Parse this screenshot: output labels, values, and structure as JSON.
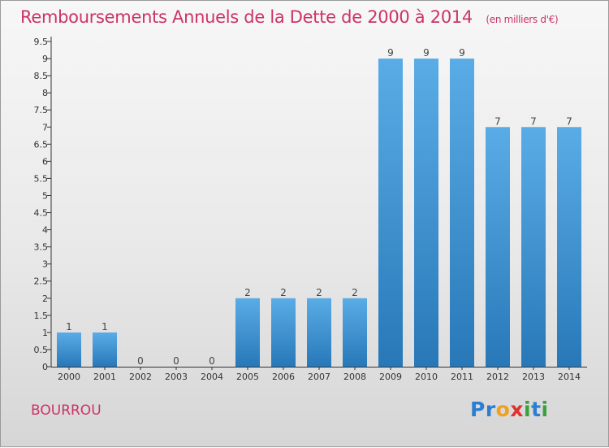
{
  "header": {
    "title": "Remboursements Annuels de la Dette de 2000 à 2014",
    "unit": "(en milliers d'€)"
  },
  "footer": {
    "place": "BOURROU",
    "logo_letters": [
      {
        "ch": "P",
        "color": "#2a7fd4"
      },
      {
        "ch": "r",
        "color": "#2a7fd4"
      },
      {
        "ch": "o",
        "color": "#f0a020"
      },
      {
        "ch": "x",
        "color": "#e03030"
      },
      {
        "ch": "i",
        "color": "#3aa03a"
      },
      {
        "ch": "t",
        "color": "#2a7fd4"
      },
      {
        "ch": "i",
        "color": "#3aa03a"
      }
    ]
  },
  "chart_data": {
    "type": "bar",
    "title": "Remboursements Annuels de la Dette de 2000 à 2014",
    "categories": [
      "2000",
      "2001",
      "2002",
      "2003",
      "2004",
      "2005",
      "2006",
      "2007",
      "2008",
      "2009",
      "2010",
      "2011",
      "2012",
      "2013",
      "2014"
    ],
    "values": [
      1,
      1,
      0,
      0,
      0,
      2,
      2,
      2,
      2,
      9,
      9,
      9,
      7,
      7,
      7
    ],
    "ylim": [
      0,
      9.5
    ],
    "yticks": [
      "0",
      "0.5",
      "1",
      "1.5",
      "2",
      "2.5",
      "3",
      "3.5",
      "4",
      "4.5",
      "5",
      "5.5",
      "6",
      "6.5",
      "7",
      "7.5",
      "8",
      "8.5",
      "9",
      "9.5"
    ],
    "ytick_values": [
      0,
      0.5,
      1,
      1.5,
      2,
      2.5,
      3,
      3.5,
      4,
      4.5,
      5,
      5.5,
      6,
      6.5,
      7,
      7.5,
      8,
      8.5,
      9,
      9.5
    ],
    "grid": false,
    "bar_color_top": "#5aace6",
    "bar_color_bottom": "#2878b8",
    "axis_color": "#333333"
  }
}
